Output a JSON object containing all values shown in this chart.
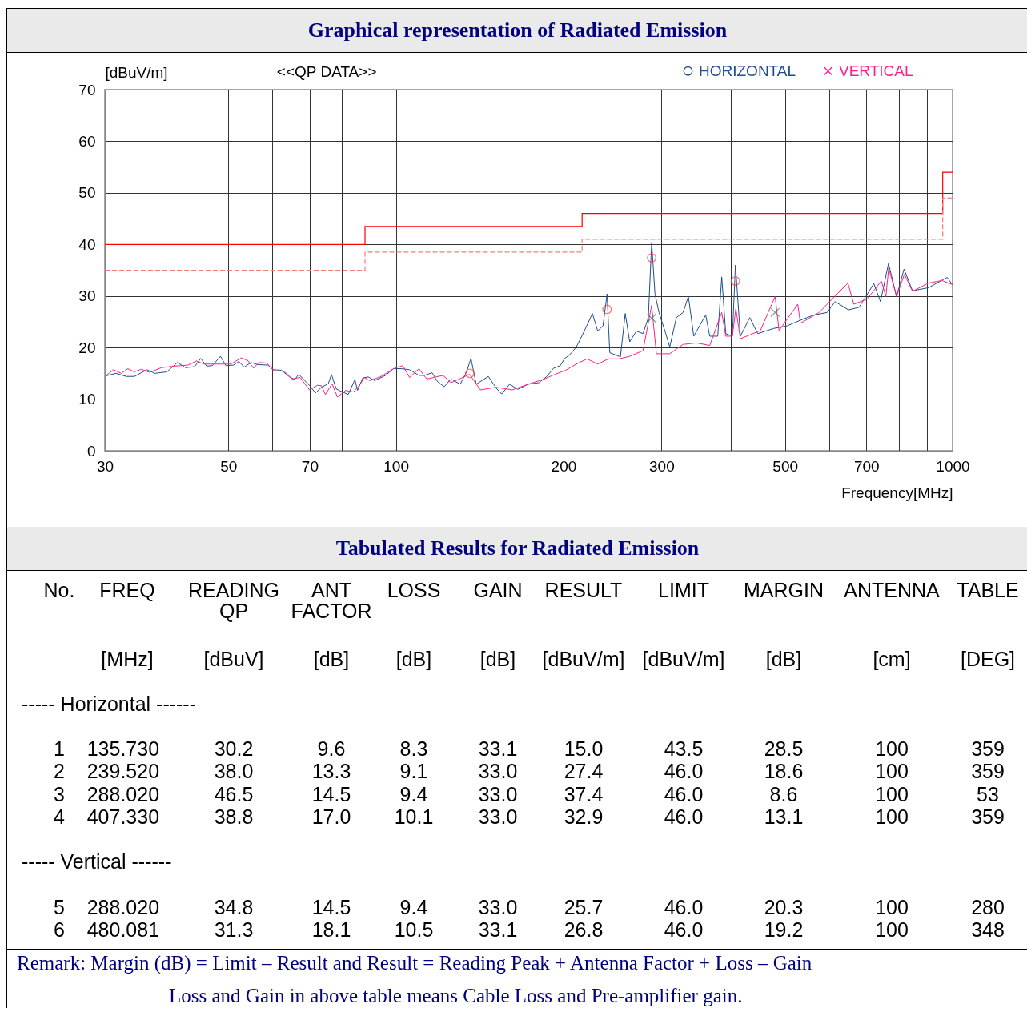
{
  "chart_data": [
    {
      "type": "line",
      "title": "Graphical representation of Radiated Emission",
      "subtitle": "<<QP DATA>>",
      "xlabel": "Frequency[MHz]",
      "ylabel": "[dBuV/m]",
      "log": "x",
      "grid": true,
      "legend": "top right",
      "marker": "none",
      "line_style": "solid",
      "xlim": [
        30,
        1000
      ],
      "xticks": [
        30,
        {
          "value": 40,
          "label": null
        },
        50,
        {
          "value": 60,
          "label": null
        },
        70,
        {
          "value": 80,
          "label": null
        },
        {
          "value": 90,
          "label": null
        },
        100,
        200,
        300,
        {
          "value": 400,
          "label": null
        },
        500,
        {
          "value": 600,
          "label": null
        },
        700,
        {
          "value": 800,
          "label": null
        },
        {
          "value": 900,
          "label": null
        },
        1000
      ],
      "ylim": [
        0,
        70
      ],
      "yticks": [
        0,
        10,
        20,
        30,
        40,
        50,
        60,
        70
      ],
      "series": [
        {
          "name": "HORIZONTAL",
          "type": "line",
          "color": "#1f4e8c",
          "x": [
            30.1,
            31.4,
            32.8,
            33.9,
            35.7,
            36.9,
            38.8,
            40.5,
            41.9,
            43.5,
            44.6,
            45.7,
            46.8,
            48.4,
            49.5,
            51.1,
            52.2,
            53.4,
            54.9,
            56.4,
            58.9,
            60.3,
            62.3,
            64.4,
            65.8,
            66.9,
            69.9,
            71.7,
            73.5,
            75.6,
            76.6,
            78.1,
            79.4,
            82.1,
            84.4,
            85.3,
            87.2,
            89.2,
            91.6,
            95.8,
            99.0,
            102.4,
            105.8,
            110.0,
            112.4,
            116.2,
            118.8,
            122.1,
            125.6,
            130.5,
            134.1,
            136.4,
            139.4,
            146.6,
            151.5,
            154.9,
            160.1,
            165.5,
            172.9,
            180.7,
            186.7,
            192.0,
            197.4,
            200.7,
            205.2,
            210.9,
            218.0,
            225.4,
            230.4,
            235.5,
            239.5,
            242.2,
            248.9,
            253.1,
            258.2,
            263.0,
            270.4,
            277.9,
            284.1,
            288.0,
            292.0,
            296.9,
            305.3,
            310.4,
            319.0,
            328.0,
            335.3,
            342.8,
            360.2,
            366.3,
            378.6,
            384.9,
            391.4,
            402.2,
            407.3,
            415.8,
            432.2,
            446.8,
            477.2,
            504.3,
            533.0,
            563.3,
            595.2,
            615.2,
            650.1,
            679.3,
            722.1,
            742.1,
            767.2,
            793.1,
            818.0,
            847.2,
            905.1,
            977.9,
            1000
          ],
          "values": [
            14.5,
            15.0,
            14.4,
            14.4,
            15.7,
            15.0,
            15.3,
            17.1,
            16.1,
            16.3,
            17.9,
            16.4,
            16.5,
            18.3,
            16.5,
            16.6,
            17.3,
            16.2,
            17.1,
            16.7,
            16.6,
            15.7,
            15.6,
            14.3,
            13.8,
            14.8,
            12.7,
            11.2,
            12.3,
            13.0,
            14.8,
            12.0,
            11.6,
            10.9,
            13.8,
            11.7,
            14.1,
            14.3,
            13.6,
            14.6,
            15.9,
            15.9,
            15.7,
            14.6,
            14.6,
            15.1,
            13.4,
            12.4,
            13.9,
            12.9,
            15.4,
            17.9,
            12.9,
            14.4,
            12.1,
            11.0,
            12.9,
            11.9,
            12.9,
            13.2,
            14.4,
            16.0,
            16.5,
            17.8,
            18.6,
            20.1,
            23.2,
            26.6,
            23.2,
            24.2,
            30.4,
            19.0,
            18.5,
            18.2,
            26.6,
            21.1,
            23.2,
            22.7,
            25.8,
            40.4,
            30.4,
            26.8,
            22.7,
            20.1,
            25.8,
            26.8,
            29.9,
            22.2,
            26.3,
            22.2,
            22.2,
            33.7,
            22.7,
            22.2,
            36.0,
            22.2,
            25.8,
            22.7,
            23.7,
            24.2,
            25.3,
            26.3,
            26.8,
            28.9,
            27.3,
            27.8,
            32.4,
            28.9,
            36.3,
            29.9,
            35.2,
            31.0,
            31.6,
            33.6,
            32.1
          ]
        },
        {
          "name": "VERTICAL",
          "type": "line",
          "color": "#ff1f8a",
          "x": [
            30.1,
            31.1,
            32.1,
            33.0,
            33.9,
            34.9,
            36.1,
            37.9,
            40.0,
            42.3,
            43.8,
            45.2,
            48.3,
            50.5,
            52.8,
            54.3,
            55.5,
            56.7,
            58.6,
            60.3,
            63.0,
            65.1,
            67.3,
            69.9,
            72.3,
            73.5,
            74.7,
            76.8,
            78.5,
            81.2,
            83.9,
            86.3,
            87.7,
            89.7,
            93.7,
            99.0,
            102.9,
            105.8,
            110.0,
            113.6,
            121.5,
            125.6,
            135.7,
            141.8,
            151.5,
            161.8,
            172.9,
            184.7,
            193.1,
            201.8,
            210.9,
            220.4,
            230.4,
            240.8,
            251.6,
            263.0,
            277.9,
            288.0,
            293.7,
            310.4,
            328.0,
            346.6,
            366.3,
            384.9,
            391.4,
            402.2,
            408.0,
            415.8,
            451.6,
            480.1,
            487.9,
            527.2,
            533.0,
            575.8,
            648.6,
            664.6,
            702.2,
            744.7,
            758.9,
            767.7,
            793.1,
            819.3,
            847.2,
            905.1,
            956.8,
            1000
          ],
          "values": [
            14.5,
            15.7,
            15.0,
            15.9,
            15.3,
            15.8,
            15.2,
            16.1,
            16.4,
            16.6,
            17.4,
            16.8,
            16.8,
            16.8,
            18.0,
            17.4,
            16.0,
            17.1,
            17.0,
            15.5,
            15.4,
            13.9,
            14.2,
            11.8,
            12.7,
            12.6,
            10.9,
            13.0,
            10.4,
            11.7,
            11.4,
            12.9,
            14.2,
            13.6,
            14.3,
            15.9,
            16.5,
            14.2,
            15.9,
            13.9,
            14.6,
            13.2,
            14.8,
            11.8,
            12.3,
            11.8,
            12.9,
            13.9,
            14.8,
            15.6,
            16.8,
            17.8,
            16.8,
            17.8,
            17.8,
            18.3,
            19.4,
            28.2,
            18.8,
            18.8,
            20.6,
            20.9,
            20.4,
            26.8,
            22.2,
            22.2,
            27.6,
            21.7,
            23.3,
            29.9,
            23.3,
            28.4,
            24.7,
            26.8,
            32.5,
            28.4,
            29.4,
            32.9,
            29.9,
            35.4,
            29.9,
            34.2,
            30.9,
            32.5,
            33.0,
            32.2
          ]
        },
        {
          "type": "step",
          "color": "#ff0000",
          "line_style": "solid",
          "x": [
            30,
            88,
            216,
            960,
            1000
          ],
          "values": [
            40,
            43.5,
            46,
            54,
            54
          ]
        },
        {
          "type": "step",
          "color": "#ff7777",
          "line_style": "dashed",
          "x": [
            30,
            88,
            216,
            960,
            1000
          ],
          "values": [
            35,
            38.5,
            41,
            49,
            49
          ]
        },
        {
          "type": "scatter",
          "marker": "circle",
          "color": "#ff3b3b",
          "x": [
            135.73,
            239.52,
            288.02,
            407.33
          ],
          "values": [
            15.0,
            27.4,
            37.4,
            32.9
          ]
        },
        {
          "type": "scatter",
          "marker": "cross",
          "color": "#2e8b57",
          "x": [
            288.02,
            480.081
          ],
          "values": [
            25.7,
            26.8
          ]
        }
      ]
    },
    {
      "type": "other",
      "title": "Tabulated Results for Radiated Emission",
      "annotations": [
        "No. FREQ READING ANT LOSS GAIN RESULT LIMIT MARGIN ANTENNA TABLE",
        "QP FACTOR",
        "[MHz] [dBuV] [dB] [dB] [dB] [dBuV/m] [dBuV/m] [dB] [cm] [DEG]",
        "----- Horizontal ------",
        "1 135.730 30.2 9.6 8.3 33.1 15.0 43.5 28.5 100 359",
        "2 239.520 38.0 13.3 9.1 33.0 27.4 46.0 18.6 100 359",
        "3 288.020 46.5 14.5 9.4 33.0 37.4 46.0 8.6 100 53",
        "4 407.330 38.8 17.0 10.1 33.0 32.9 46.0 13.1 100 359",
        "----- Vertical ------",
        "5 288.020 34.8 14.5 9.4 33.0 25.7 46.0 20.3 100 280",
        "6 480.081 31.3 18.1 10.5 33.1 26.8 46.0 19.2 100 348",
        "Remark: Margin (dB) = Limit – Result and Result = Reading Peak + Antenna Factor + Loss – Gain",
        "Loss and Gain in above table means Cable Loss and Pre-amplifier gain."
      ]
    }
  ]
}
